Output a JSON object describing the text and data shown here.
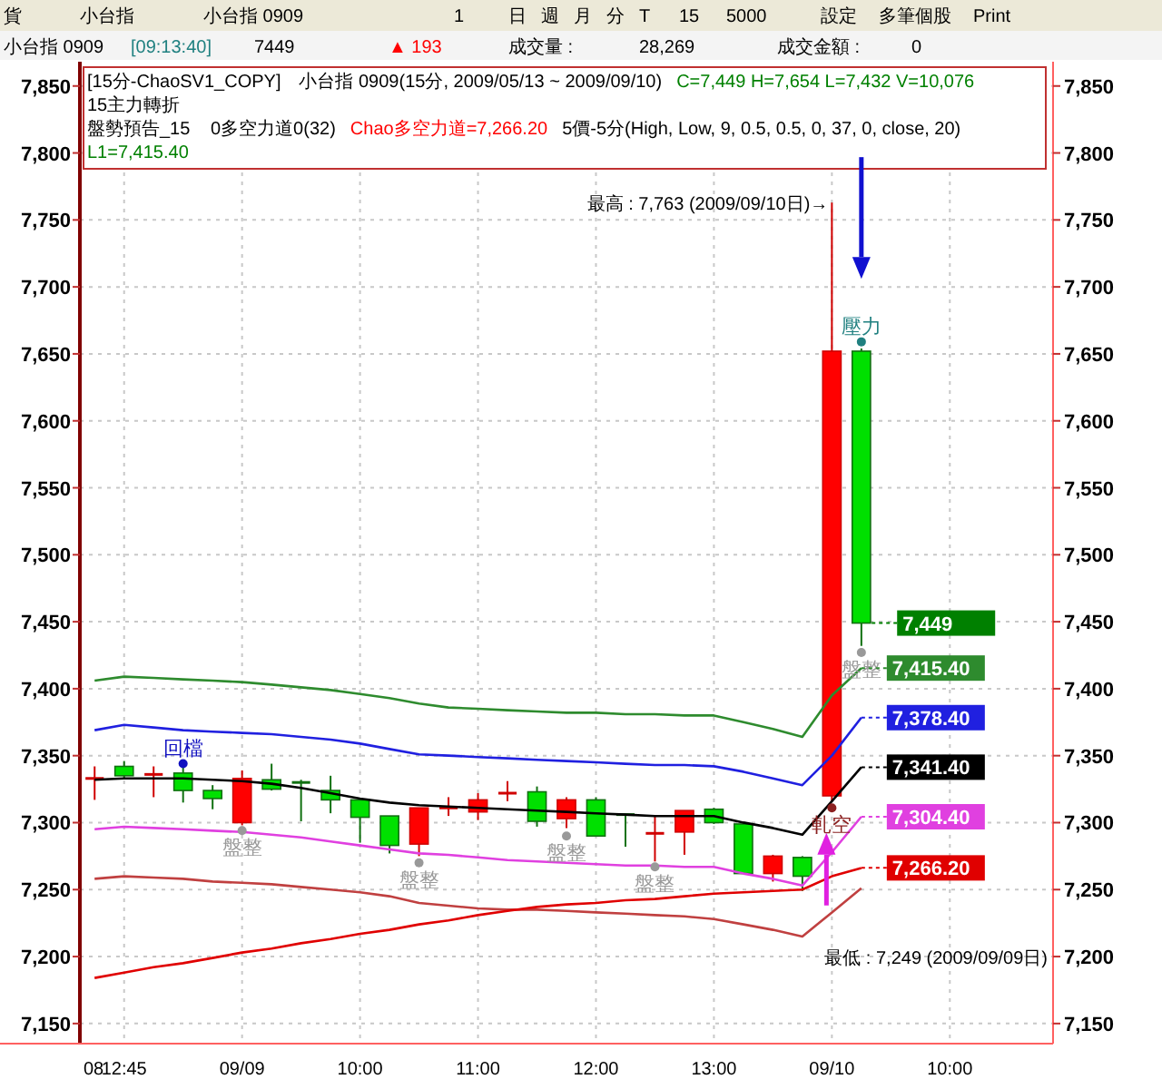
{
  "chart_data": {
    "type": "candlestick",
    "title": "[15分-ChaoSV1_COPY]　小台指 0909(15分, 2009/05/13 ~ 2009/09/10)",
    "categories": [
      "08",
      "12:45",
      null,
      null,
      null,
      "09/09",
      null,
      null,
      null,
      "10:00",
      null,
      null,
      null,
      "11:00",
      null,
      null,
      null,
      "12:00",
      null,
      null,
      null,
      "13:00",
      null,
      null,
      null,
      "09/10",
      null,
      null,
      null,
      "10:00",
      null,
      null,
      null
    ],
    "ohlc": [
      [
        7333,
        7342,
        7317,
        7333
      ],
      [
        7342,
        7346,
        7333,
        7335
      ],
      [
        7336,
        7342,
        7319,
        7336
      ],
      [
        7337,
        7341,
        7315,
        7324
      ],
      [
        7324,
        7328,
        7310,
        7318
      ],
      [
        7300,
        7339,
        7298,
        7333
      ],
      [
        7332,
        7344,
        7324,
        7325
      ],
      [
        7330,
        7332,
        7301,
        7329
      ],
      [
        7324,
        7335,
        7307,
        7317
      ],
      [
        7317,
        7318,
        7285,
        7304
      ],
      [
        7305,
        7305,
        7277,
        7283
      ],
      [
        7284,
        7311,
        7275,
        7311
      ],
      [
        7311,
        7319,
        7305,
        7311
      ],
      [
        7308,
        7322,
        7302,
        7317
      ],
      [
        7322,
        7331,
        7316,
        7322
      ],
      [
        7323,
        7327,
        7297,
        7301
      ],
      [
        7303,
        7319,
        7296,
        7317
      ],
      [
        7317,
        7319,
        7290,
        7290
      ],
      [
        7306,
        7306,
        7282,
        7305
      ],
      [
        7292,
        7305,
        7271,
        7292
      ],
      [
        7293,
        7309,
        7276,
        7309
      ],
      [
        7310,
        7311,
        7299,
        7300
      ],
      [
        7299,
        7300,
        7262,
        7262
      ],
      [
        7262,
        7276,
        7256,
        7275
      ],
      [
        7274,
        7275,
        7249,
        7260
      ],
      [
        7320,
        7763,
        7316,
        7652
      ],
      [
        7652,
        7654,
        7432,
        7449
      ],
      null,
      null,
      null,
      null,
      null,
      null
    ],
    "value_labels": [
      null,
      null,
      null,
      null,
      null,
      null,
      null,
      null,
      null,
      null,
      null,
      null,
      null,
      null,
      null,
      null,
      null,
      null,
      null,
      null,
      null,
      null,
      null,
      null,
      null,
      null,
      "7,449",
      null,
      null,
      null,
      null,
      null,
      null
    ],
    "series": [
      {
        "type": "line",
        "color": "#2e8b2e",
        "values": [
          7406,
          7409,
          7408,
          7407,
          7406,
          7405,
          7403,
          7401,
          7399,
          7396,
          7393,
          7389,
          7386,
          7385,
          7384,
          7383,
          7382,
          7382,
          7381,
          7381,
          7380,
          7380,
          7375,
          7370,
          7364,
          7395,
          7415.4,
          null,
          null,
          null,
          null,
          null,
          null
        ],
        "value_labels": [
          null,
          null,
          null,
          null,
          null,
          null,
          null,
          null,
          null,
          null,
          null,
          null,
          null,
          null,
          null,
          null,
          null,
          null,
          null,
          null,
          null,
          null,
          null,
          null,
          null,
          null,
          "7,415.40",
          null,
          null,
          null,
          null,
          null,
          null
        ]
      },
      {
        "type": "line",
        "color": "#2020e0",
        "values": [
          7369,
          7373,
          7371,
          7369,
          7368,
          7367,
          7366,
          7364,
          7362,
          7359,
          7355,
          7351,
          7350,
          7349,
          7348,
          7347,
          7346,
          7345,
          7344,
          7343,
          7343,
          7342,
          7338,
          7333,
          7328,
          7350,
          7378.4,
          null,
          null,
          null,
          null,
          null,
          null
        ],
        "value_labels": [
          null,
          null,
          null,
          null,
          null,
          null,
          null,
          null,
          null,
          null,
          null,
          null,
          null,
          null,
          null,
          null,
          null,
          null,
          null,
          null,
          null,
          null,
          null,
          null,
          null,
          null,
          "7,378.40",
          null,
          null,
          null,
          null,
          null,
          null
        ]
      },
      {
        "type": "line",
        "color": "#000000",
        "values": [
          7332,
          7333,
          7333,
          7333,
          7332,
          7331,
          7329,
          7326,
          7322,
          7318,
          7315,
          7313,
          7312,
          7311,
          7310,
          7309,
          7308,
          7307,
          7306,
          7305,
          7305,
          7305,
          7300,
          7296,
          7291,
          7316,
          7341.4,
          null,
          null,
          null,
          null,
          null,
          null
        ],
        "value_labels": [
          null,
          null,
          null,
          null,
          null,
          null,
          null,
          null,
          null,
          null,
          null,
          null,
          null,
          null,
          null,
          null,
          null,
          null,
          null,
          null,
          null,
          null,
          null,
          null,
          null,
          null,
          "7,341.40",
          null,
          null,
          null,
          null,
          null,
          null
        ]
      },
      {
        "type": "line",
        "color": "#e040e0",
        "values": [
          7295,
          7297,
          7296,
          7295,
          7294,
          7293,
          7291,
          7289,
          7286,
          7283,
          7280,
          7277,
          7276,
          7274,
          7272,
          7271,
          7270,
          7269,
          7268,
          7268,
          7267,
          7267,
          7262,
          7258,
          7253,
          7278,
          7304.4,
          null,
          null,
          null,
          null,
          null,
          null
        ],
        "value_labels": [
          null,
          null,
          null,
          null,
          null,
          null,
          null,
          null,
          null,
          null,
          null,
          null,
          null,
          null,
          null,
          null,
          null,
          null,
          null,
          null,
          null,
          null,
          null,
          null,
          null,
          null,
          "7,304.40",
          null,
          null,
          null,
          null,
          null,
          null
        ]
      },
      {
        "type": "line",
        "color": "#c04040",
        "values": [
          7258,
          7260,
          7259,
          7258,
          7256,
          7255,
          7254,
          7252,
          7250,
          7248,
          7245,
          7240,
          7238,
          7236,
          7235,
          7235,
          7234,
          7233,
          7232,
          7231,
          7230,
          7228,
          7224,
          7220,
          7215,
          7233,
          7251,
          null,
          null,
          null,
          null,
          null,
          null
        ]
      },
      {
        "type": "line",
        "color": "#e00000",
        "values": [
          7184,
          7188,
          7192,
          7195,
          7199,
          7203,
          7206,
          7210,
          7213,
          7217,
          7220,
          7224,
          7227,
          7231,
          7234,
          7237,
          7239,
          7240,
          7242,
          7243,
          7245,
          7247,
          7248,
          7249,
          7250,
          7260,
          7266.2,
          null,
          null,
          null,
          null,
          null,
          null
        ],
        "value_labels": [
          null,
          null,
          null,
          null,
          null,
          null,
          null,
          null,
          null,
          null,
          null,
          null,
          null,
          null,
          null,
          null,
          null,
          null,
          null,
          null,
          null,
          null,
          null,
          null,
          null,
          null,
          "7,266.20",
          null,
          null,
          null,
          null,
          null,
          null
        ]
      },
      {
        "type": "scatter",
        "name": "回檔",
        "color": "#1010c0",
        "values": [
          null,
          null,
          null,
          7344,
          null,
          null,
          null,
          null,
          null,
          null,
          null,
          null,
          null,
          null,
          null,
          null,
          null,
          null,
          null,
          null,
          null,
          null,
          null,
          null,
          null,
          null,
          null,
          null,
          null,
          null,
          null,
          null,
          null
        ]
      },
      {
        "type": "scatter",
        "name": "盤整",
        "color": "#999999",
        "values": [
          null,
          null,
          null,
          null,
          null,
          7294,
          null,
          null,
          null,
          null,
          null,
          7270,
          null,
          null,
          null,
          null,
          7290,
          null,
          null,
          7267,
          null,
          null,
          null,
          null,
          null,
          null,
          7427,
          null,
          null,
          null,
          null,
          null,
          null
        ]
      },
      {
        "type": "scatter",
        "name": "軋空",
        "color": "#8b2020",
        "values": [
          null,
          null,
          null,
          null,
          null,
          null,
          null,
          null,
          null,
          null,
          null,
          null,
          null,
          null,
          null,
          null,
          null,
          null,
          null,
          null,
          null,
          null,
          null,
          null,
          null,
          7311,
          null,
          null,
          null,
          null,
          null,
          null,
          null
        ]
      },
      {
        "type": "scatter",
        "name": "壓力",
        "color": "#208080",
        "values": [
          null,
          null,
          null,
          null,
          null,
          null,
          null,
          null,
          null,
          null,
          null,
          null,
          null,
          null,
          null,
          null,
          null,
          null,
          null,
          null,
          null,
          null,
          null,
          null,
          null,
          null,
          7659,
          null,
          null,
          null,
          null,
          null,
          null
        ]
      }
    ],
    "ylim": [
      7135,
      7860
    ],
    "yticks": [
      {
        "value": 7150,
        "label": "7,150"
      },
      {
        "value": 7200,
        "label": "7,200"
      },
      {
        "value": 7250,
        "label": "7,250"
      },
      {
        "value": 7300,
        "label": "7,300"
      },
      {
        "value": 7350,
        "label": "7,350"
      },
      {
        "value": 7400,
        "label": "7,400"
      },
      {
        "value": 7450,
        "label": "7,450"
      },
      {
        "value": 7500,
        "label": "7,500"
      },
      {
        "value": 7550,
        "label": "7,550"
      },
      {
        "value": 7600,
        "label": "7,600"
      },
      {
        "value": 7650,
        "label": "7,650"
      },
      {
        "value": 7700,
        "label": "7,700"
      },
      {
        "value": 7750,
        "label": "7,750"
      },
      {
        "value": 7800,
        "label": "7,800"
      },
      {
        "value": 7850,
        "label": "7,850"
      }
    ],
    "y2lim": [
      7135,
      7860
    ],
    "y2ticks": [
      {
        "value": 7150,
        "label": "7,150"
      },
      {
        "value": 7200,
        "label": "7,200"
      },
      {
        "value": 7250,
        "label": "7,250"
      },
      {
        "value": 7300,
        "label": "7,300"
      },
      {
        "value": 7350,
        "label": "7,350"
      },
      {
        "value": 7400,
        "label": "7,400"
      },
      {
        "value": 7450,
        "label": "7,450"
      },
      {
        "value": 7500,
        "label": "7,500"
      },
      {
        "value": 7550,
        "label": "7,550"
      },
      {
        "value": 7600,
        "label": "7,600"
      },
      {
        "value": 7650,
        "label": "7,650"
      },
      {
        "value": 7700,
        "label": "7,700"
      },
      {
        "value": 7750,
        "label": "7,750"
      },
      {
        "value": 7800,
        "label": "7,800"
      },
      {
        "value": 7850,
        "label": "7,850"
      }
    ],
    "grid": true,
    "annotations": [
      "貨",
      "小台指",
      "小台指 0909",
      "1",
      "日",
      "週",
      "月",
      "分",
      "T",
      "15",
      "5000",
      "設定",
      "多筆個股",
      "Print",
      "小台指 0909",
      "[09:13:40]",
      "7449",
      "▲ 193",
      "成交量 :",
      "28,269",
      "成交金額 :",
      "0",
      "C=7,449 H=7,654 L=7,432 V=10,076",
      "15主力轉折",
      "盤勢預告_15",
      "0多空力道0(32)",
      "Chao多空力道=7,266.20",
      "5價-5分(High, Low, 9, 0.5, 0.5, 0, 37, 0, close, 20)",
      "L1=7,415.40",
      "最高 : 7,763 (2009/09/10日)→",
      "最低 : 7,249 (2009/09/09日)"
    ]
  }
}
